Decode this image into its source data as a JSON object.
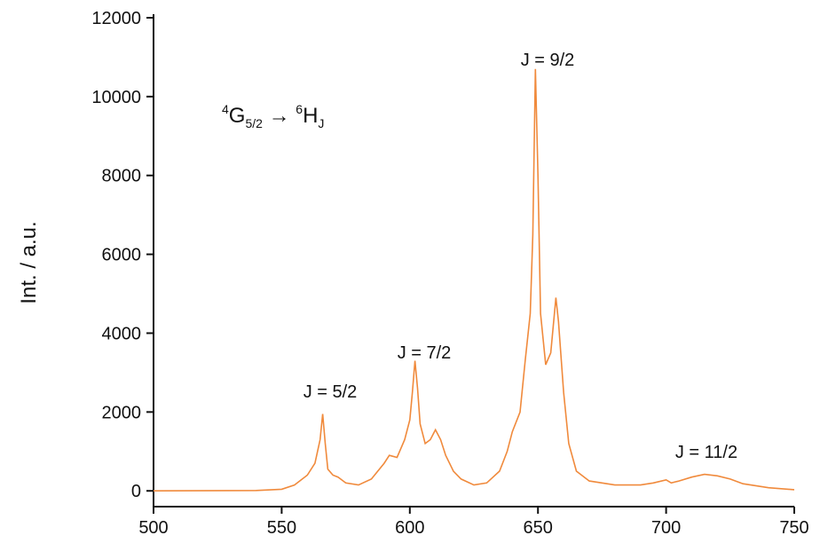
{
  "chart_data": {
    "type": "line",
    "y_label": "Int. / a.u.",
    "transition": [
      "4",
      "G",
      "5/2",
      " → ",
      "6",
      "H",
      "J"
    ],
    "annotations": [
      "J = 5/2",
      "J = 7/2",
      "J = 9/2",
      "J = 11/2"
    ],
    "series": [
      {
        "color": "#f08a3c",
        "x": [
          500,
          540,
          550,
          555,
          560,
          563,
          565,
          566,
          567,
          568,
          570,
          572,
          575,
          580,
          585,
          590,
          592,
          595,
          598,
          600,
          601,
          602,
          603,
          604,
          606,
          608,
          610,
          612,
          614,
          617,
          620,
          625,
          630,
          635,
          638,
          640,
          643,
          645,
          647,
          648,
          649,
          650,
          651,
          653,
          655,
          657,
          658,
          660,
          662,
          665,
          670,
          680,
          690,
          695,
          700,
          702,
          705,
          710,
          715,
          720,
          725,
          730,
          740,
          750
        ],
        "values": [
          0,
          10,
          40,
          150,
          400,
          700,
          1300,
          1950,
          1200,
          550,
          400,
          350,
          200,
          150,
          300,
          700,
          900,
          850,
          1300,
          1800,
          2500,
          3300,
          2600,
          1700,
          1200,
          1300,
          1550,
          1300,
          900,
          500,
          300,
          150,
          200,
          500,
          1000,
          1500,
          2000,
          3300,
          4500,
          6500,
          10700,
          8000,
          4500,
          3200,
          3500,
          4900,
          4300,
          2500,
          1200,
          500,
          250,
          150,
          150,
          200,
          280,
          200,
          250,
          350,
          420,
          380,
          300,
          180,
          80,
          30
        ]
      }
    ],
    "xlim": [
      500,
      750
    ],
    "xticks": [
      500,
      550,
      600,
      650,
      700,
      750
    ],
    "ylim": [
      -400,
      12000
    ],
    "yticks": [
      0,
      2000,
      4000,
      6000,
      8000,
      10000,
      12000
    ]
  }
}
